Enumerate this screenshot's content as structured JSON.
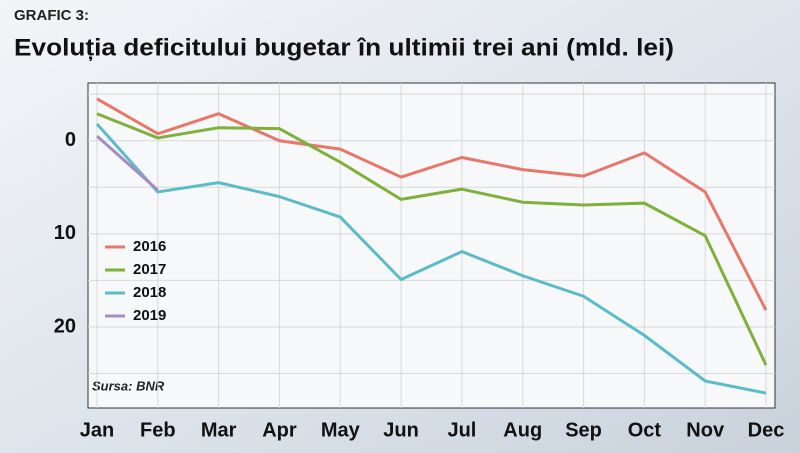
{
  "chart_data": {
    "type": "line",
    "label": "GRAFIC 3:",
    "title": "Evoluția deficitului bugetar în ultimii trei ani (mld. lei)",
    "source": "Sursa: BNR",
    "categories": [
      "Jan",
      "Feb",
      "Mar",
      "Apr",
      "May",
      "Jun",
      "Jul",
      "Aug",
      "Sep",
      "Oct",
      "Nov",
      "Dec"
    ],
    "series": [
      {
        "name": "2016",
        "color": "#e8776a",
        "values": [
          -4.5,
          -0.75,
          -2.9,
          0,
          0.9,
          3.9,
          1.8,
          3.1,
          3.8,
          1.3,
          5.5,
          18.2
        ]
      },
      {
        "name": "2017",
        "color": "#7fb03a",
        "values": [
          -2.9,
          -0.3,
          -1.4,
          -1.3,
          2.3,
          6.3,
          5.2,
          6.6,
          6.9,
          6.7,
          10.2,
          24.1
        ]
      },
      {
        "name": "2018",
        "color": "#5bbcc8",
        "values": [
          -1.8,
          5.5,
          4.5,
          6.0,
          8.2,
          14.9,
          11.9,
          14.5,
          16.7,
          20.9,
          25.8,
          27.1
        ]
      },
      {
        "name": "2019",
        "color": "#a58cc4",
        "values": [
          -0.5,
          5.3,
          null,
          null,
          null,
          null,
          null,
          null,
          null,
          null,
          null,
          null
        ]
      }
    ],
    "ylim": [
      -6.2,
      28.7
    ],
    "yticks": [
      0,
      10,
      20
    ],
    "minor_yticks": [
      -5,
      5,
      15,
      25
    ],
    "y_inverted": true,
    "grid": true,
    "legend": "left"
  }
}
